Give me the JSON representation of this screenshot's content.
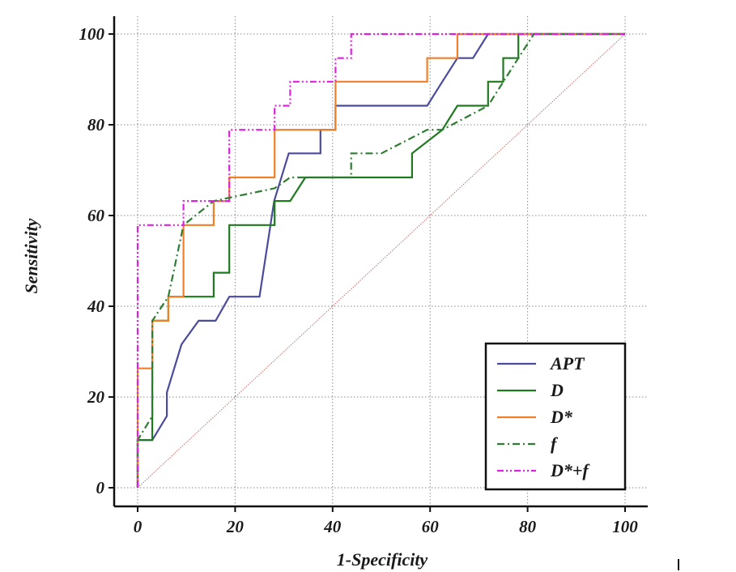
{
  "chart_data": {
    "type": "line",
    "title": "",
    "xlabel": "1-Specificity",
    "ylabel": "Sensitivity",
    "xlim": [
      0,
      100
    ],
    "ylim": [
      0,
      100
    ],
    "xticks": [
      0,
      20,
      40,
      60,
      80,
      100
    ],
    "yticks": [
      0,
      20,
      40,
      60,
      80,
      100
    ],
    "grid": true,
    "legend_position": "bottom-right",
    "reference_line": {
      "name": "diagonal",
      "color": "#c0706a",
      "points": [
        [
          0,
          0
        ],
        [
          100,
          100
        ]
      ]
    },
    "series": [
      {
        "name": "APT",
        "color": "#4b4b9e",
        "style": "solid",
        "points": [
          [
            0,
            0
          ],
          [
            0,
            10.5
          ],
          [
            3,
            10.5
          ],
          [
            6,
            15.8
          ],
          [
            6,
            21
          ],
          [
            9,
            31.6
          ],
          [
            12.5,
            36.8
          ],
          [
            16,
            36.8
          ],
          [
            18.8,
            42.1
          ],
          [
            25,
            42.1
          ],
          [
            28,
            63.2
          ],
          [
            31,
            73.7
          ],
          [
            37.5,
            73.7
          ],
          [
            37.5,
            78.9
          ],
          [
            40.6,
            78.9
          ],
          [
            40.6,
            84.2
          ],
          [
            59.4,
            84.2
          ],
          [
            62.5,
            89.5
          ],
          [
            65.6,
            94.7
          ],
          [
            68.8,
            94.7
          ],
          [
            71.9,
            100
          ],
          [
            100,
            100
          ]
        ]
      },
      {
        "name": "D",
        "color": "#1f7a1f",
        "style": "solid",
        "points": [
          [
            0,
            0
          ],
          [
            0,
            10.5
          ],
          [
            3,
            10.5
          ],
          [
            3,
            15.8
          ],
          [
            3,
            36.8
          ],
          [
            6.3,
            36.8
          ],
          [
            6.3,
            42.1
          ],
          [
            15.6,
            42.1
          ],
          [
            15.6,
            47.4
          ],
          [
            18.8,
            47.4
          ],
          [
            18.8,
            57.9
          ],
          [
            28.1,
            57.9
          ],
          [
            28.1,
            63.2
          ],
          [
            31.3,
            63.2
          ],
          [
            34.4,
            68.4
          ],
          [
            56.3,
            68.4
          ],
          [
            56.3,
            73.7
          ],
          [
            62.5,
            78.9
          ],
          [
            65.6,
            84.2
          ],
          [
            71.9,
            84.2
          ],
          [
            71.9,
            89.5
          ],
          [
            75,
            89.5
          ],
          [
            75,
            94.7
          ],
          [
            78.1,
            94.7
          ],
          [
            78.1,
            100
          ],
          [
            100,
            100
          ]
        ]
      },
      {
        "name": "D*",
        "color": "#f07f2a",
        "style": "solid",
        "points": [
          [
            0,
            0
          ],
          [
            0,
            26.3
          ],
          [
            3,
            26.3
          ],
          [
            3,
            36.8
          ],
          [
            6.3,
            36.8
          ],
          [
            6.3,
            42.1
          ],
          [
            9.4,
            42.1
          ],
          [
            9.4,
            57.9
          ],
          [
            15.6,
            57.9
          ],
          [
            15.6,
            63.2
          ],
          [
            18.8,
            63.2
          ],
          [
            18.8,
            68.4
          ],
          [
            28.1,
            68.4
          ],
          [
            28.1,
            78.9
          ],
          [
            40.6,
            78.9
          ],
          [
            40.6,
            89.5
          ],
          [
            59.4,
            89.5
          ],
          [
            59.4,
            94.7
          ],
          [
            65.6,
            94.7
          ],
          [
            65.6,
            100
          ],
          [
            100,
            100
          ]
        ]
      },
      {
        "name": "f",
        "color": "#2e7d32",
        "style": "dashdot",
        "points": [
          [
            0,
            0
          ],
          [
            0,
            10.5
          ],
          [
            3,
            15.8
          ],
          [
            3,
            36.8
          ],
          [
            6.3,
            42.1
          ],
          [
            9.4,
            57.9
          ],
          [
            15.6,
            63.2
          ],
          [
            28.1,
            66
          ],
          [
            31.3,
            68.4
          ],
          [
            43.8,
            68.4
          ],
          [
            43.8,
            73.7
          ],
          [
            50,
            73.7
          ],
          [
            59.4,
            78.9
          ],
          [
            62.5,
            78.9
          ],
          [
            71.9,
            84.2
          ],
          [
            78.1,
            94.7
          ],
          [
            81.3,
            100
          ],
          [
            100,
            100
          ]
        ]
      },
      {
        "name": "D*+f",
        "color": "#e020e0",
        "style": "dashdotdot",
        "points": [
          [
            0,
            0
          ],
          [
            0,
            57.9
          ],
          [
            9.4,
            57.9
          ],
          [
            9.4,
            63.2
          ],
          [
            18.8,
            63.2
          ],
          [
            18.8,
            78.9
          ],
          [
            28.1,
            78.9
          ],
          [
            28.1,
            84.2
          ],
          [
            31.3,
            84.2
          ],
          [
            31.3,
            89.5
          ],
          [
            40.6,
            89.5
          ],
          [
            40.6,
            94.7
          ],
          [
            43.8,
            94.7
          ],
          [
            43.8,
            100
          ],
          [
            100,
            100
          ]
        ]
      }
    ]
  }
}
